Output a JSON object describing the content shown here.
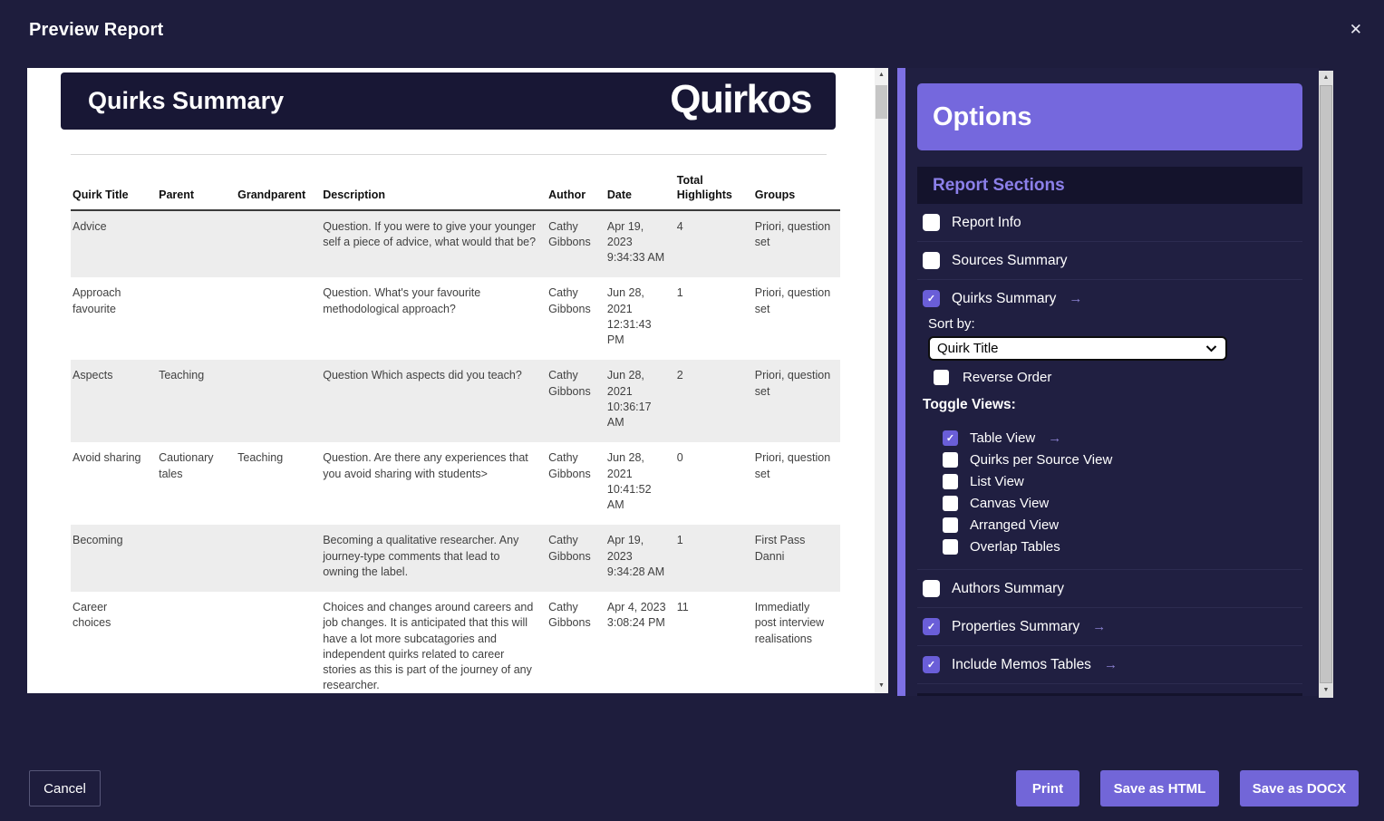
{
  "dialog": {
    "title": "Preview Report"
  },
  "icons": {
    "close": "✕",
    "check": "✓",
    "arrow": "→",
    "scroll_up": "▲",
    "scroll_down": "▼"
  },
  "report": {
    "header_title": "Quirks Summary",
    "logo": "Quirkos",
    "columns": [
      "Quirk Title",
      "Parent",
      "Grandparent",
      "Description",
      "Author",
      "Date",
      "Total Highlights",
      "Groups"
    ],
    "rows": [
      [
        "Advice",
        "",
        "",
        "Question. If you were to give your younger self a piece of advice, what would that be?",
        "Cathy Gibbons",
        "Apr 19, 2023 9:34:33 AM",
        "4",
        "Priori, question set"
      ],
      [
        "Approach favourite",
        "",
        "",
        "Question. What's your favourite methodological approach?",
        "Cathy Gibbons",
        "Jun 28, 2021 12:31:43 PM",
        "1",
        "Priori, question set"
      ],
      [
        "Aspects",
        "Teaching",
        "",
        "Question Which aspects did you teach?",
        "Cathy Gibbons",
        "Jun 28, 2021 10:36:17 AM",
        "2",
        "Priori, question set"
      ],
      [
        "Avoid sharing",
        "Cautionary tales",
        "Teaching",
        "Question. Are there any experiences that you avoid sharing with students>",
        "Cathy Gibbons",
        "Jun 28, 2021 10:41:52 AM",
        "0",
        "Priori, question set"
      ],
      [
        "Becoming",
        "",
        "",
        "Becoming a qualitative researcher. Any journey-type comments that lead to owning the label.",
        "Cathy Gibbons",
        "Apr 19, 2023 9:34:28 AM",
        "1",
        "First Pass Danni"
      ],
      [
        "Career choices",
        "",
        "",
        "Choices and changes around careers and job changes. It is anticipated that this will have a lot more subcatagories and independent quirks related to career stories as this is part of the journey of any researcher.",
        "Cathy Gibbons",
        "Apr 4, 2023 3:08:24 PM",
        "11",
        "Immediatly post interview realisations"
      ]
    ]
  },
  "options": {
    "title": "Options",
    "section_title": "Report Sections",
    "report_info": "Report Info",
    "sources_summary": "Sources Summary",
    "quirks_summary": "Quirks Summary",
    "sort_label": "Sort by:",
    "sort_value": "Quirk Title",
    "reverse_order": "Reverse Order",
    "toggle_views_label": "Toggle Views:",
    "toggle_views": [
      {
        "label": "Table View",
        "checked": true,
        "arrow": true
      },
      {
        "label": "Quirks per Source View",
        "checked": false
      },
      {
        "label": "List View",
        "checked": false
      },
      {
        "label": "Canvas View",
        "checked": false
      },
      {
        "label": "Arranged View",
        "checked": false
      },
      {
        "label": "Overlap Tables",
        "checked": false
      }
    ],
    "authors_summary": "Authors Summary",
    "properties_summary": "Properties Summary",
    "include_memos": "Include Memos Tables"
  },
  "footer": {
    "cancel": "Cancel",
    "print": "Print",
    "save_html": "Save as HTML",
    "save_docx": "Save as DOCX"
  },
  "colors": {
    "accent": "#7266d8",
    "options_header": "#7568dd",
    "navy": "#1e1d3d",
    "report_bar": "#181735"
  }
}
